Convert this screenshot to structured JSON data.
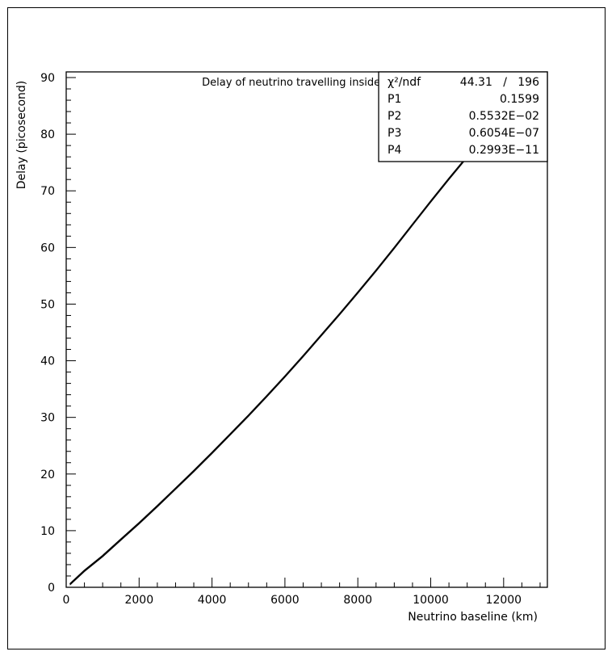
{
  "chart_data": {
    "type": "line",
    "title": "Delay of neutrino travelling inside earth",
    "xlabel": "Neutrino baseline  (km)",
    "ylabel": "Delay (picosecond)",
    "xlim": [
      0,
      13200
    ],
    "ylim": [
      0,
      91
    ],
    "xticks": [
      0,
      2000,
      4000,
      6000,
      8000,
      10000,
      12000
    ],
    "yticks": [
      0,
      10,
      20,
      30,
      40,
      50,
      60,
      70,
      80,
      90
    ],
    "xticklabels": [
      "0",
      "2000",
      "4000",
      "6000",
      "8000",
      "10000",
      "12000"
    ],
    "yticklabels": [
      "0",
      "10",
      "20",
      "30",
      "40",
      "50",
      "60",
      "70",
      "80",
      "90"
    ],
    "grid": false,
    "series": [
      {
        "x": [
          100,
          500,
          1000,
          1500,
          2000,
          2500,
          3000,
          3500,
          4000,
          4500,
          5000,
          5500,
          6000,
          6500,
          7000,
          7500,
          8000,
          8500,
          9000,
          9500,
          10000,
          10500,
          11000,
          11500,
          12000,
          12500
        ],
        "values": [
          0.6,
          3.0,
          5.6,
          8.5,
          11.4,
          14.4,
          17.5,
          20.6,
          23.8,
          27.1,
          30.4,
          33.8,
          37.3,
          40.9,
          44.6,
          48.3,
          52.1,
          56.0,
          60.0,
          64.1,
          68.2,
          72.2,
          76.1,
          79.5,
          82.6,
          85.7
        ]
      }
    ],
    "stats_box": {
      "placement": "top-right",
      "rows": [
        {
          "label": "χ²/ndf",
          "value": "44.31   /   196"
        },
        {
          "label": "P1",
          "value": "0.1599"
        },
        {
          "label": "P2",
          "value": "0.5532E−02"
        },
        {
          "label": "P3",
          "value": "0.6054E−07"
        },
        {
          "label": "P4",
          "value": "0.2993E−11"
        }
      ]
    }
  }
}
